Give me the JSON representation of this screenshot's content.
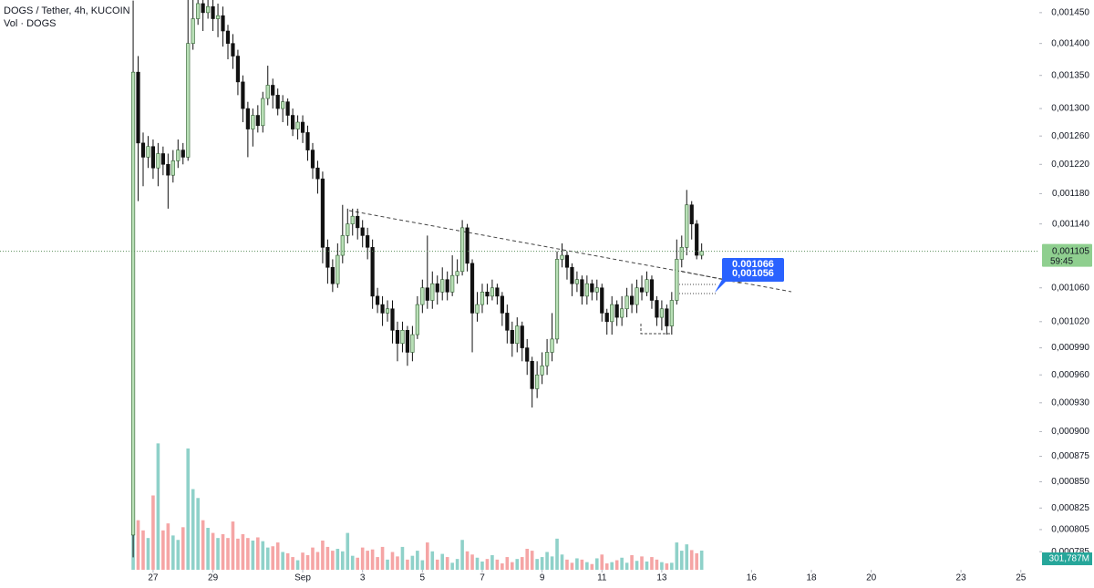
{
  "chart_data": {
    "type": "candlestick",
    "title": "DOGS / Tether, 4h, KUCOIN",
    "volume_title": "Vol · DOGS",
    "log_scale": true,
    "grid": false,
    "up_color": "#b9e0b7",
    "down_color": "#111111",
    "volume_up_color": "#8fd1c9",
    "volume_down_color": "#f5a5a5",
    "xlim": [
      -26.7,
      181.7
    ],
    "xticks": [
      {
        "value": 4,
        "label": "27"
      },
      {
        "value": 16,
        "label": "29"
      },
      {
        "value": 34,
        "label": "Sep"
      },
      {
        "value": 46,
        "label": "3"
      },
      {
        "value": 58,
        "label": "5"
      },
      {
        "value": 70,
        "label": "7"
      },
      {
        "value": 82,
        "label": "9"
      },
      {
        "value": 94,
        "label": "11"
      },
      {
        "value": 106,
        "label": "13"
      },
      {
        "value": 124,
        "label": "16"
      },
      {
        "value": 136,
        "label": "18"
      },
      {
        "value": 148,
        "label": "20"
      },
      {
        "value": 166,
        "label": "23"
      },
      {
        "value": 178,
        "label": "25"
      }
    ],
    "ylim": [
      0.000769,
      0.001471
    ],
    "yticks": [
      {
        "value": 0.00145,
        "label": "0,001450"
      },
      {
        "value": 0.0014,
        "label": "0,001400"
      },
      {
        "value": 0.00135,
        "label": "0,001350"
      },
      {
        "value": 0.0013,
        "label": "0,001300"
      },
      {
        "value": 0.00126,
        "label": "0,001260"
      },
      {
        "value": 0.00122,
        "label": "0,001220"
      },
      {
        "value": 0.00118,
        "label": "0,001180"
      },
      {
        "value": 0.00114,
        "label": "0,001140"
      },
      {
        "value": 0.00106,
        "label": "0,001060"
      },
      {
        "value": 0.00102,
        "label": "0,001020"
      },
      {
        "value": 0.00099,
        "label": "0,000990"
      },
      {
        "value": 0.00096,
        "label": "0,000960"
      },
      {
        "value": 0.00093,
        "label": "0,000930"
      },
      {
        "value": 0.0009,
        "label": "0,000900"
      },
      {
        "value": 0.000875,
        "label": "0,000875"
      },
      {
        "value": 0.00085,
        "label": "0,000850"
      },
      {
        "value": 0.000825,
        "label": "0,000825"
      },
      {
        "value": 0.000805,
        "label": "0,000805"
      },
      {
        "value": 0.000785,
        "label": "0,000785"
      }
    ],
    "last_price": {
      "value": 0.001105,
      "label": "0,001105"
    },
    "countdown": "59:45",
    "alert_labels": [
      {
        "value": 0.001066,
        "label": "0,001066"
      },
      {
        "value": 0.001056,
        "label": "0,001056"
      }
    ],
    "open": [
      0.0008,
      0.001355,
      0.00125,
      0.00123,
      0.001245,
      0.001215,
      0.001235,
      0.00122,
      0.001205,
      0.001225,
      0.00124,
      0.00123,
      0.0014,
      0.00144,
      0.001465,
      0.00145,
      0.00146,
      0.00144,
      0.001445,
      0.00142,
      0.0014,
      0.00138,
      0.00134,
      0.0013,
      0.00127,
      0.00129,
      0.001275,
      0.001315,
      0.001335,
      0.00132,
      0.0013,
      0.00131,
      0.00129,
      0.00127,
      0.00128,
      0.001265,
      0.00124,
      0.001215,
      0.0012,
      0.00111,
      0.001085,
      0.001065,
      0.0011,
      0.001125,
      0.00114,
      0.00115,
      0.001135,
      0.001125,
      0.00111,
      0.00105,
      0.00104,
      0.00103,
      0.001035,
      0.00101,
      0.000995,
      0.00101,
      0.000985,
      0.001005,
      0.00104,
      0.00106,
      0.001045,
      0.001065,
      0.001055,
      0.00107,
      0.001055,
      0.001075,
      0.00108,
      0.001135,
      0.00109,
      0.00103,
      0.00104,
      0.001055,
      0.00105,
      0.00106,
      0.00105,
      0.00103,
      0.00101,
      0.000995,
      0.001015,
      0.00099,
      0.000975,
      0.000945,
      0.00096,
      0.00097,
      0.000985,
      0.001,
      0.001095,
      0.0011,
      0.001085,
      0.001065,
      0.00107,
      0.00105,
      0.001065,
      0.001055,
      0.00106,
      0.00103,
      0.00102,
      0.00104,
      0.001025,
      0.001035,
      0.00105,
      0.00104,
      0.00106,
      0.001055,
      0.00107,
      0.001045,
      0.001025,
      0.001035,
      0.001015,
      0.001045,
      0.001095,
      0.00111,
      0.001165,
      0.00114,
      0.0011
    ],
    "high": [
      0.00147,
      0.00138,
      0.001265,
      0.00126,
      0.001255,
      0.00125,
      0.001245,
      0.001235,
      0.00124,
      0.001255,
      0.00125,
      0.001471,
      0.001471,
      0.001471,
      0.001471,
      0.001471,
      0.001471,
      0.001465,
      0.00146,
      0.00143,
      0.001415,
      0.00139,
      0.00135,
      0.00131,
      0.0013,
      0.001305,
      0.001325,
      0.001365,
      0.001345,
      0.00133,
      0.00132,
      0.001315,
      0.0013,
      0.00129,
      0.00129,
      0.001275,
      0.00125,
      0.001225,
      0.00121,
      0.00112,
      0.001095,
      0.001115,
      0.001165,
      0.00116,
      0.00116,
      0.00116,
      0.001145,
      0.001135,
      0.00112,
      0.00106,
      0.00105,
      0.001045,
      0.001045,
      0.00102,
      0.00102,
      0.001015,
      0.001015,
      0.00105,
      0.00107,
      0.001125,
      0.00108,
      0.001075,
      0.001085,
      0.00108,
      0.0011,
      0.001095,
      0.001145,
      0.00114,
      0.001095,
      0.001055,
      0.001065,
      0.001065,
      0.00107,
      0.001065,
      0.001055,
      0.00104,
      0.00102,
      0.001025,
      0.00102,
      0.001,
      0.00098,
      0.000975,
      0.000985,
      0.001,
      0.00103,
      0.001105,
      0.001115,
      0.001105,
      0.00109,
      0.00108,
      0.001075,
      0.001075,
      0.00107,
      0.00107,
      0.001065,
      0.001035,
      0.00105,
      0.001045,
      0.00105,
      0.00106,
      0.001065,
      0.00107,
      0.001075,
      0.00108,
      0.001075,
      0.00105,
      0.001045,
      0.00104,
      0.001055,
      0.00112,
      0.001125,
      0.001185,
      0.00117,
      0.001145,
      0.001115
    ],
    "low": [
      0.00078,
      0.00117,
      0.00119,
      0.001215,
      0.0012,
      0.00119,
      0.001205,
      0.00116,
      0.001195,
      0.001215,
      0.00122,
      0.001225,
      0.00139,
      0.00143,
      0.00142,
      0.00144,
      0.00142,
      0.00141,
      0.001395,
      0.001375,
      0.00136,
      0.00132,
      0.00128,
      0.00123,
      0.001245,
      0.001265,
      0.001265,
      0.001305,
      0.0013,
      0.00129,
      0.00128,
      0.001275,
      0.00126,
      0.001255,
      0.00125,
      0.001225,
      0.0012,
      0.00118,
      0.00109,
      0.001065,
      0.001055,
      0.00106,
      0.00109,
      0.001115,
      0.001125,
      0.00112,
      0.00111,
      0.001095,
      0.001035,
      0.00103,
      0.001015,
      0.00102,
      0.000995,
      0.000975,
      0.000985,
      0.00097,
      0.000975,
      0.001,
      0.00103,
      0.001035,
      0.001035,
      0.00104,
      0.001045,
      0.001045,
      0.00105,
      0.001065,
      0.001075,
      0.00108,
      0.000985,
      0.00102,
      0.00103,
      0.00104,
      0.001045,
      0.00104,
      0.001015,
      0.000995,
      0.00098,
      0.000985,
      0.000975,
      0.00096,
      0.000925,
      0.000935,
      0.00095,
      0.00096,
      0.000975,
      0.000995,
      0.001085,
      0.00107,
      0.00105,
      0.001055,
      0.00104,
      0.00104,
      0.001045,
      0.001045,
      0.00102,
      0.001005,
      0.001005,
      0.001015,
      0.001015,
      0.001025,
      0.00103,
      0.00103,
      0.001045,
      0.00105,
      0.001035,
      0.001015,
      0.00101,
      0.001005,
      0.001005,
      0.00104,
      0.001085,
      0.0011,
      0.00112,
      0.001095,
      0.001095
    ],
    "close": [
      0.001355,
      0.00125,
      0.00123,
      0.001245,
      0.001215,
      0.001235,
      0.00122,
      0.001205,
      0.001225,
      0.00124,
      0.00123,
      0.0014,
      0.00144,
      0.001465,
      0.00145,
      0.00146,
      0.00144,
      0.001445,
      0.00142,
      0.0014,
      0.00138,
      0.00134,
      0.0013,
      0.00127,
      0.00129,
      0.001275,
      0.001315,
      0.001335,
      0.00132,
      0.0013,
      0.00131,
      0.00129,
      0.00127,
      0.00128,
      0.001265,
      0.00124,
      0.001215,
      0.0012,
      0.00111,
      0.001085,
      0.001065,
      0.0011,
      0.001125,
      0.00114,
      0.00115,
      0.001135,
      0.001125,
      0.00111,
      0.00105,
      0.00104,
      0.00103,
      0.001035,
      0.00101,
      0.000995,
      0.00101,
      0.000985,
      0.001005,
      0.00104,
      0.00106,
      0.001045,
      0.001065,
      0.001055,
      0.00107,
      0.001055,
      0.001075,
      0.00108,
      0.001135,
      0.00109,
      0.00103,
      0.00104,
      0.001055,
      0.00105,
      0.00106,
      0.00105,
      0.00103,
      0.00101,
      0.000995,
      0.001015,
      0.00099,
      0.000975,
      0.000945,
      0.00096,
      0.00097,
      0.000985,
      0.001,
      0.001095,
      0.0011,
      0.001085,
      0.001065,
      0.00107,
      0.00105,
      0.001065,
      0.001055,
      0.00106,
      0.00103,
      0.00102,
      0.00104,
      0.001025,
      0.001035,
      0.00105,
      0.00104,
      0.00106,
      0.001055,
      0.00107,
      0.001045,
      0.001025,
      0.001035,
      0.001015,
      0.001045,
      0.001095,
      0.00111,
      0.001165,
      0.00114,
      0.0011,
      0.001105
    ],
    "volume_ylim": [
      0,
      3000
    ],
    "volume": [
      1100,
      780,
      620,
      500,
      1170,
      1990,
      620,
      730,
      540,
      470,
      670,
      1910,
      1270,
      1130,
      780,
      660,
      580,
      500,
      560,
      500,
      760,
      490,
      560,
      500,
      460,
      510,
      450,
      350,
      370,
      430,
      280,
      260,
      200,
      150,
      270,
      230,
      350,
      280,
      460,
      360,
      300,
      330,
      290,
      580,
      220,
      190,
      350,
      300,
      320,
      200,
      360,
      160,
      280,
      210,
      360,
      160,
      220,
      300,
      150,
      430,
      290,
      160,
      250,
      200,
      110,
      170,
      470,
      290,
      240,
      190,
      130,
      170,
      230,
      160,
      100,
      200,
      120,
      170,
      200,
      330,
      300,
      170,
      200,
      280,
      210,
      490,
      240,
      160,
      110,
      180,
      160,
      120,
      90,
      180,
      240,
      100,
      120,
      150,
      190,
      110,
      230,
      140,
      210,
      130,
      200,
      160,
      120,
      100,
      110,
      430,
      300,
      400,
      310,
      260,
      301.787
    ],
    "last_volume_label": "301,787M"
  }
}
